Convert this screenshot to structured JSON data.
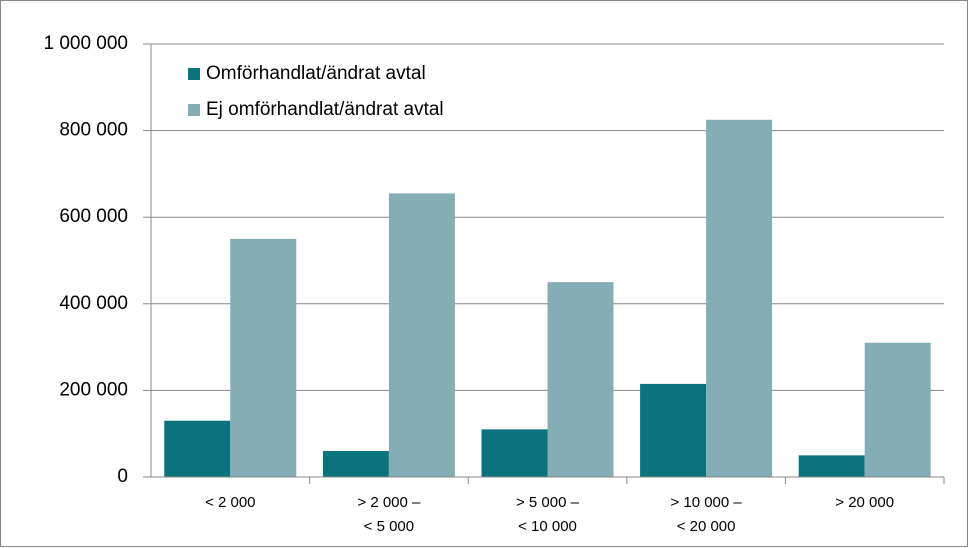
{
  "chart_data": {
    "type": "bar",
    "categories": [
      "< 2 000",
      "> 2 000 –\n< 5 000",
      "> 5 000 –\n< 10 000",
      "> 10 000 –\n< 20 000",
      "> 20 000"
    ],
    "series": [
      {
        "name": "Omförhandlat/ändrat avtal",
        "color": "#0b737e",
        "values": [
          130000,
          60000,
          110000,
          215000,
          50000
        ]
      },
      {
        "name": "Ej omförhandlat/ändrat avtal",
        "color": "#84adb5",
        "values": [
          550000,
          655000,
          450000,
          825000,
          310000
        ]
      }
    ],
    "ylim": [
      0,
      1000000
    ],
    "yticks": [
      0,
      {
        "value": 200000,
        "label": "200 000"
      },
      {
        "value": 400000,
        "label": "400 000"
      },
      {
        "value": 600000,
        "label": "600 000"
      },
      {
        "value": 800000,
        "label": "800 000"
      },
      {
        "value": 1000000,
        "label": "1 000 000"
      }
    ],
    "grid": true,
    "legend": "top-left"
  }
}
